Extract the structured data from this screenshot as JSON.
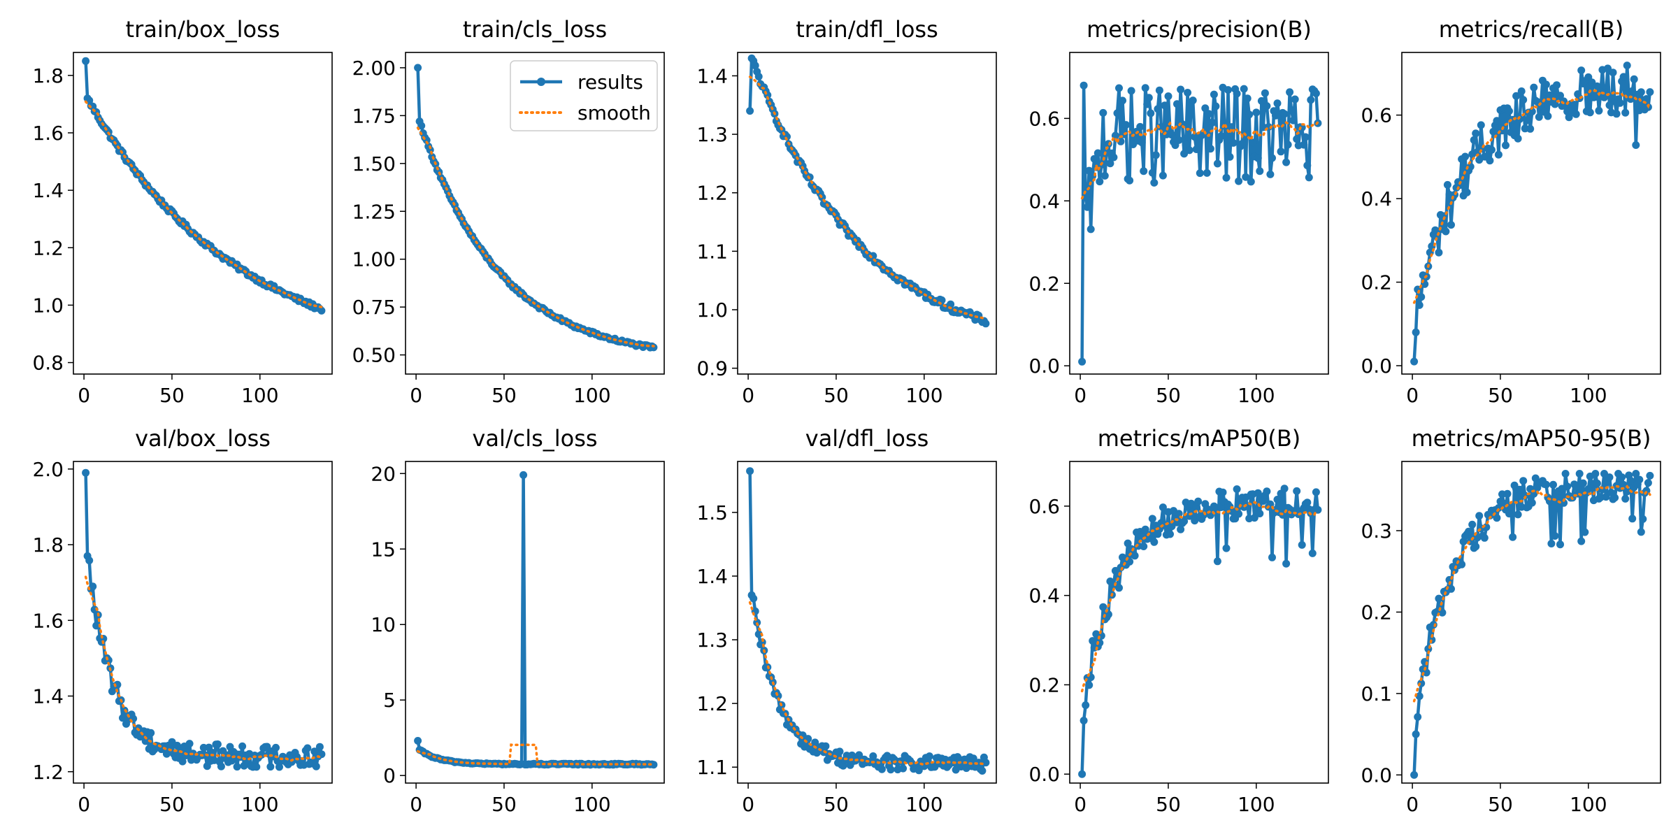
{
  "chart_data": {
    "type": "line",
    "epochs": 135,
    "series_names": [
      "results",
      "smooth"
    ],
    "colors": {
      "results": "#1f77b4",
      "smooth": "#ff7f0e"
    },
    "legend": {
      "location": "upper-right",
      "panel": "train/cls_loss",
      "entries": [
        "results",
        "smooth"
      ]
    },
    "panels": [
      {
        "title": "train/box_loss",
        "ylim": [
          0.76,
          1.88
        ],
        "yticks": [
          "0.8",
          "1.0",
          "1.2",
          "1.4",
          "1.6",
          "1.8"
        ],
        "ytick_values": [
          0.8,
          1.0,
          1.2,
          1.4,
          1.6,
          1.8
        ],
        "xlim": [
          -6,
          141
        ],
        "xticks": [
          "0",
          "50",
          "100"
        ],
        "xtick_values": [
          0,
          50,
          100
        ],
        "model": "decay",
        "params": {
          "y0": 1.85,
          "y1": 1.72,
          "yend": 0.79,
          "k": 0.0117,
          "noise": 0.008
        }
      },
      {
        "title": "train/cls_loss",
        "ylim": [
          0.4,
          2.08
        ],
        "yticks": [
          "0.50",
          "0.75",
          "1.00",
          "1.25",
          "1.50",
          "1.75",
          "2.00"
        ],
        "ytick_values": [
          0.5,
          0.75,
          1.0,
          1.25,
          1.5,
          1.75,
          2.0
        ],
        "xlim": [
          -6,
          141
        ],
        "xticks": [
          "0",
          "50",
          "100"
        ],
        "xtick_values": [
          0,
          50,
          100
        ],
        "model": "decay",
        "params": {
          "y0": 2.0,
          "y1": 1.72,
          "yend": 0.47,
          "k": 0.022,
          "noise": 0.008
        }
      },
      {
        "title": "train/dfl_loss",
        "ylim": [
          0.89,
          1.44
        ],
        "yticks": [
          "0.9",
          "1.0",
          "1.1",
          "1.2",
          "1.3",
          "1.4"
        ],
        "ytick_values": [
          0.9,
          1.0,
          1.1,
          1.2,
          1.3,
          1.4
        ],
        "xlim": [
          -6,
          141
        ],
        "xticks": [
          "0",
          "50",
          "100"
        ],
        "xtick_values": [
          0,
          50,
          100
        ],
        "model": "decay",
        "params": {
          "y0": 1.34,
          "y1": 1.43,
          "yend": 0.92,
          "k": 0.016,
          "noise": 0.006
        }
      },
      {
        "title": "metrics/precision(B)",
        "ylim": [
          -0.02,
          0.76
        ],
        "yticks": [
          "0.0",
          "0.2",
          "0.4",
          "0.6"
        ],
        "ytick_values": [
          0.0,
          0.2,
          0.4,
          0.6
        ],
        "xlim": [
          -6,
          141
        ],
        "xticks": [
          "0",
          "50",
          "100"
        ],
        "xtick_values": [
          0,
          50,
          100
        ],
        "model": "noisy",
        "params": {
          "y0": 0.01,
          "y1": 0.68,
          "base": 0.56,
          "rise": 0.35,
          "k": 0.25,
          "noise": 0.09,
          "lo": 0.25,
          "hi": 0.73
        }
      },
      {
        "title": "metrics/recall(B)",
        "ylim": [
          -0.02,
          0.75
        ],
        "yticks": [
          "0.0",
          "0.2",
          "0.4",
          "0.6"
        ],
        "ytick_values": [
          0.0,
          0.2,
          0.4,
          0.6
        ],
        "xlim": [
          -6,
          141
        ],
        "xticks": [
          "0",
          "50",
          "100"
        ],
        "xtick_values": [
          0,
          50,
          100
        ],
        "model": "rise",
        "params": {
          "y0": 0.01,
          "y1": 0.08,
          "ymax": 0.67,
          "k": 0.035,
          "noise": 0.06,
          "lo": 0.0,
          "hi": 0.72
        }
      },
      {
        "title": "val/box_loss",
        "ylim": [
          1.17,
          2.02
        ],
        "yticks": [
          "1.2",
          "1.4",
          "1.6",
          "1.8",
          "2.0"
        ],
        "ytick_values": [
          1.2,
          1.4,
          1.6,
          1.8,
          2.0
        ],
        "xlim": [
          -6,
          141
        ],
        "xticks": [
          "0",
          "50",
          "100"
        ],
        "xtick_values": [
          0,
          50,
          100
        ],
        "model": "decay",
        "params": {
          "y0": 1.99,
          "y1": 1.77,
          "yend": 1.24,
          "k": 0.07,
          "noise": 0.03
        }
      },
      {
        "title": "val/cls_loss",
        "ylim": [
          -0.5,
          20.8
        ],
        "yticks": [
          "0",
          "5",
          "10",
          "15",
          "20"
        ],
        "ytick_values": [
          0,
          5,
          10,
          15,
          20
        ],
        "xlim": [
          -6,
          141
        ],
        "xticks": [
          "0",
          "50",
          "100"
        ],
        "xtick_values": [
          0,
          50,
          100
        ],
        "model": "decay_spike",
        "params": {
          "y0": 2.3,
          "y1": 1.7,
          "yend": 0.75,
          "k": 0.09,
          "noise": 0.04,
          "spike_x": 61,
          "spike_y": 19.9
        }
      },
      {
        "title": "val/dfl_loss",
        "ylim": [
          1.075,
          1.58
        ],
        "yticks": [
          "1.1",
          "1.2",
          "1.3",
          "1.4",
          "1.5"
        ],
        "ytick_values": [
          1.1,
          1.2,
          1.3,
          1.4,
          1.5
        ],
        "xlim": [
          -6,
          141
        ],
        "xticks": [
          "0",
          "50",
          "100"
        ],
        "xtick_values": [
          0,
          50,
          100
        ],
        "model": "decay",
        "params": {
          "y0": 1.565,
          "y1": 1.37,
          "yend": 1.105,
          "k": 0.065,
          "noise": 0.012
        }
      },
      {
        "title": "metrics/mAP50(B)",
        "ylim": [
          -0.02,
          0.7
        ],
        "yticks": [
          "0.0",
          "0.2",
          "0.4",
          "0.6"
        ],
        "ytick_values": [
          0.0,
          0.2,
          0.4,
          0.6
        ],
        "xlim": [
          -6,
          141
        ],
        "xticks": [
          "0",
          "50",
          "100"
        ],
        "xtick_values": [
          0,
          50,
          100
        ],
        "model": "rise",
        "params": {
          "y0": 0.0,
          "y1": 0.12,
          "ymax": 0.61,
          "k": 0.05,
          "noise": 0.035,
          "lo": 0.0,
          "hi": 0.67
        }
      },
      {
        "title": "metrics/mAP50-95(B)",
        "ylim": [
          -0.01,
          0.385
        ],
        "yticks": [
          "0.0",
          "0.1",
          "0.2",
          "0.3"
        ],
        "ytick_values": [
          0.0,
          0.1,
          0.2,
          0.3
        ],
        "xlim": [
          -6,
          141
        ],
        "xticks": [
          "0",
          "50",
          "100"
        ],
        "xtick_values": [
          0,
          50,
          100
        ],
        "model": "rise",
        "params": {
          "y0": 0.0,
          "y1": 0.05,
          "ymax": 0.36,
          "k": 0.045,
          "noise": 0.02,
          "lo": 0.0,
          "hi": 0.37
        }
      }
    ]
  }
}
